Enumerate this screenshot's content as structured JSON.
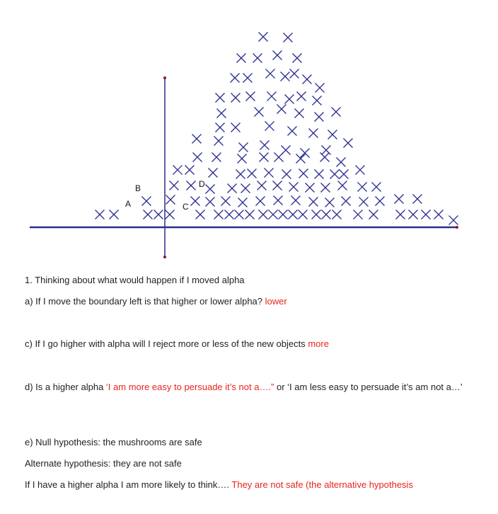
{
  "figure": {
    "labels": {
      "A": "A",
      "B": "B",
      "C": "C",
      "D": "D"
    },
    "colors": {
      "ink": "#2a2f8a",
      "marker": "#2d3191",
      "point": "#8b1a1a"
    }
  },
  "text": {
    "heading": "1. Thinking about what would happen if I moved alpha",
    "qa": {
      "question": "a) If I move the boundary left is that higher or lower alpha?",
      "answer": "lower"
    },
    "qc": {
      "question": "c) If I go higher with alpha will I reject more or less of the new objects",
      "answer": "more"
    },
    "qd": {
      "part1": "d) Is a higher alpha ",
      "answer1": "‘I am more easy to persuade it’s not a….”",
      "part2": " or ‘I am less easy to persuade it’s am not a…’"
    },
    "qe": {
      "null": "e) Null hypothesis: the mushrooms are safe",
      "alt": "Alternate hypothesis: they are not safe",
      "question": "If I have a higher alpha I am more likely to think…. ",
      "answer": "They are not safe (the alternative hypothesis"
    }
  }
}
